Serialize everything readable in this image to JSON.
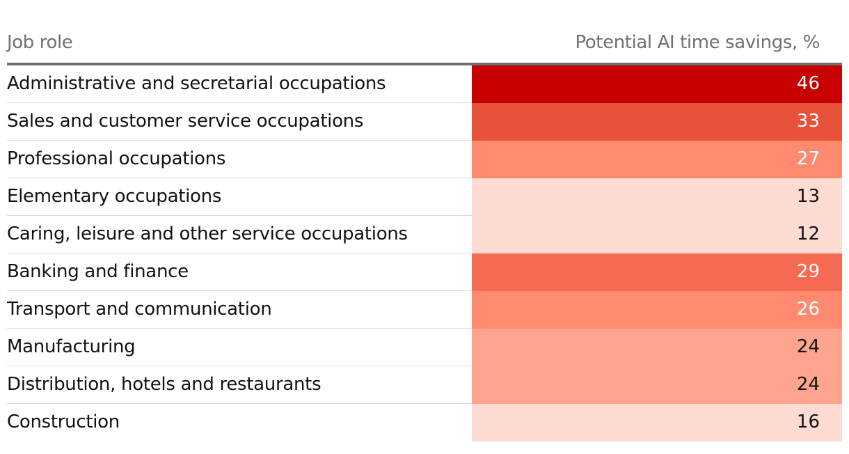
{
  "header": {
    "role_label": "Job role",
    "value_label": "Potential AI time savings, %"
  },
  "chart_data": {
    "type": "table",
    "title": "",
    "columns": [
      "Job role",
      "Potential AI time savings, %"
    ],
    "rows": [
      {
        "role": "Administrative and secretarial occupations",
        "value": 46
      },
      {
        "role": "Sales and customer service occupations",
        "value": 33
      },
      {
        "role": "Professional occupations",
        "value": 27
      },
      {
        "role": "Elementary occupations",
        "value": 13
      },
      {
        "role": "Caring, leisure and other service occupations",
        "value": 12
      },
      {
        "role": "Banking and finance",
        "value": 29
      },
      {
        "role": "Transport and communication",
        "value": 26
      },
      {
        "role": "Manufacturing",
        "value": 24
      },
      {
        "role": "Distribution, hotels and restaurants",
        "value": 24
      },
      {
        "role": "Construction",
        "value": 16
      }
    ]
  },
  "colors": {
    "dark": "#c70000",
    "strong": "#e8513a",
    "mid_strong": "#f56b52",
    "mid": "#ff8a70",
    "light": "#ffa48f",
    "pale": "#ffdcd3",
    "text_light": "#ffffff",
    "text_dark": "#121212"
  }
}
